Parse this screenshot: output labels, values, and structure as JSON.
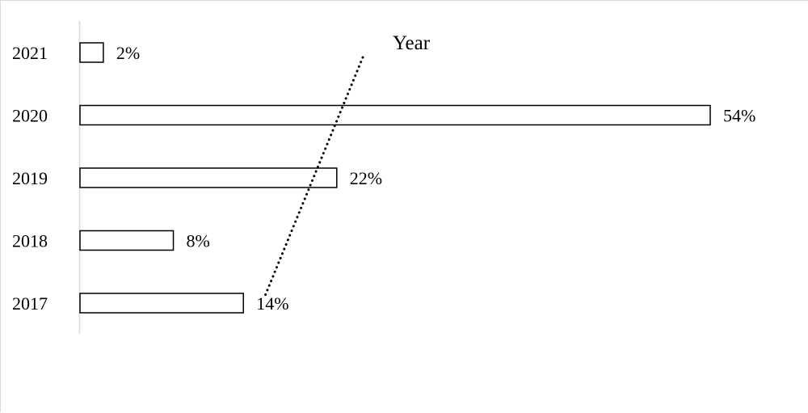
{
  "chart_data": {
    "type": "bar",
    "orientation": "horizontal",
    "title": "Year",
    "categories": [
      "2021",
      "2020",
      "2019",
      "2018",
      "2017"
    ],
    "values": [
      2,
      54,
      22,
      8,
      14
    ],
    "value_labels": [
      "2%",
      "54%",
      "22%",
      "8%",
      "14%"
    ],
    "unit": "%",
    "xlim": [
      0,
      54
    ],
    "grid": false,
    "legend": "none",
    "trendline": "dotted",
    "colors": {
      "bar_fill": "#ffffff",
      "bar_stroke": "#000000",
      "axis": "#d9d9d9",
      "trendline": "#000000"
    }
  }
}
